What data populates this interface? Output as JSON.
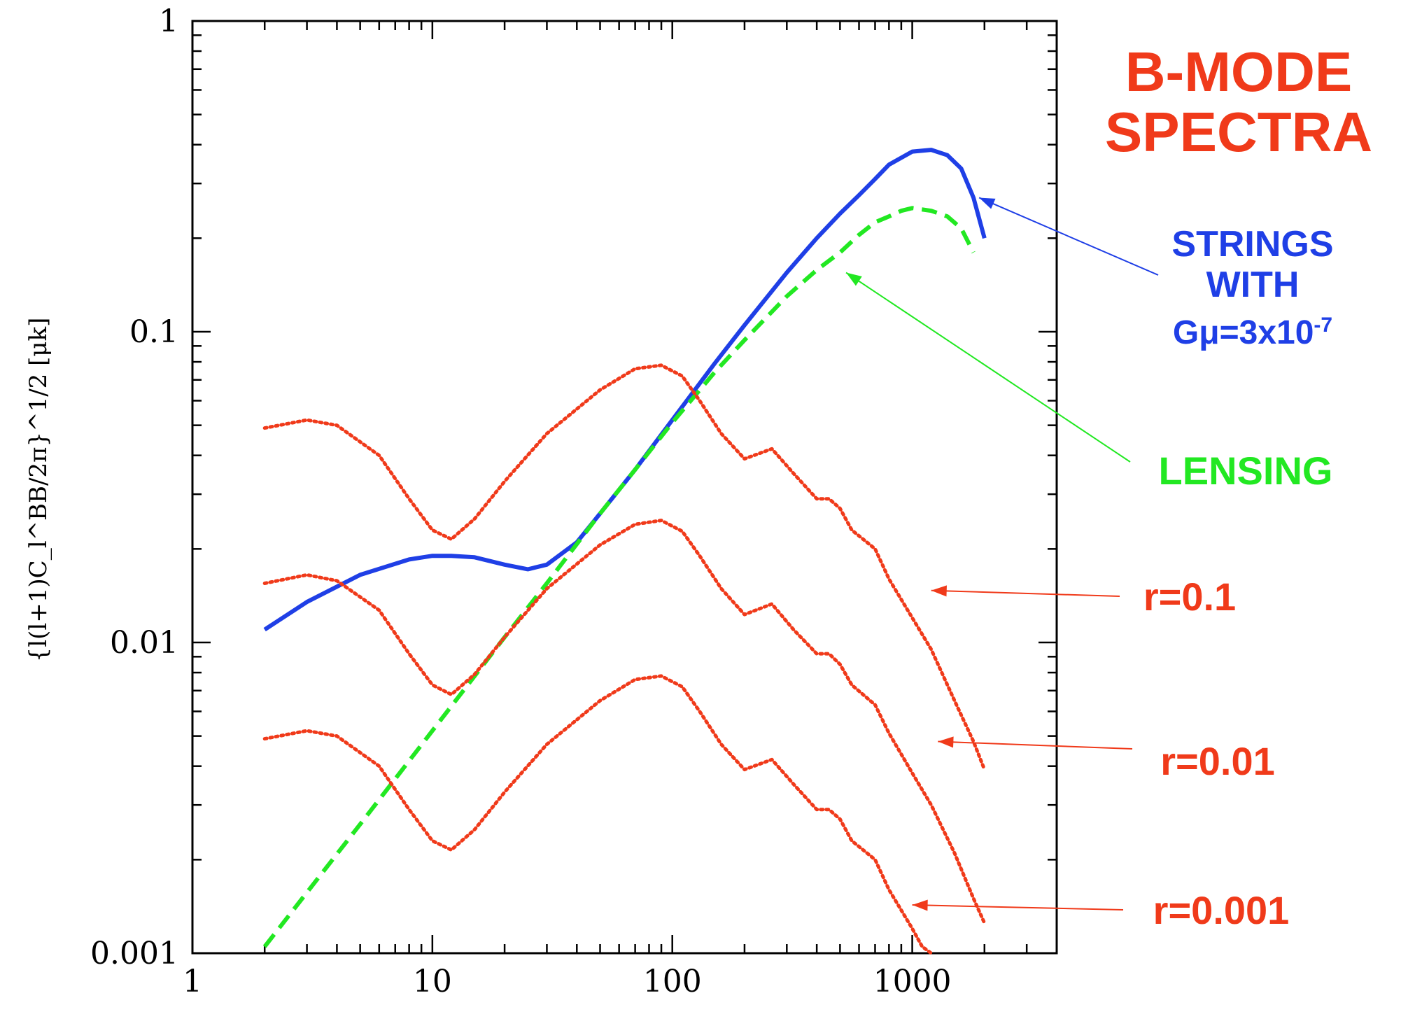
{
  "chart_data": {
    "type": "line",
    "title": "B-MODE\nSPECTRA",
    "xlabel": "",
    "ylabel": "{l(l+1)C_l^BB/2π}^1/2 [μk]",
    "x_scale": "log",
    "y_scale": "log",
    "xlim": [
      1,
      4000
    ],
    "ylim": [
      0.001,
      1
    ],
    "x_ticks": [
      "1",
      "10",
      "100",
      "1000"
    ],
    "y_ticks": [
      "0.001",
      "0.01",
      "0.1",
      "1"
    ],
    "colors": {
      "strings": "#1f3fe6",
      "lensing": "#22e822",
      "tensor": "#f03a1a"
    },
    "series": [
      {
        "name": "STRINGS WITH Gμ=3x10-7",
        "style": "solid",
        "x": [
          2,
          3,
          5,
          8,
          10,
          12,
          15,
          20,
          25,
          30,
          40,
          50,
          70,
          100,
          150,
          200,
          300,
          400,
          500,
          600,
          700,
          800,
          1000,
          1200,
          1400,
          1600,
          1800,
          2000
        ],
        "y": [
          0.011,
          0.0135,
          0.0165,
          0.0185,
          0.019,
          0.019,
          0.0188,
          0.0178,
          0.0172,
          0.0178,
          0.021,
          0.026,
          0.036,
          0.052,
          0.079,
          0.105,
          0.155,
          0.2,
          0.24,
          0.275,
          0.31,
          0.345,
          0.38,
          0.385,
          0.37,
          0.335,
          0.27,
          0.2
        ]
      },
      {
        "name": "LENSING",
        "style": "dashed",
        "x": [
          2,
          5,
          10,
          20,
          30,
          50,
          70,
          100,
          150,
          200,
          300,
          400,
          500,
          600,
          700,
          800,
          900,
          1000,
          1200,
          1400,
          1600,
          1800
        ],
        "y": [
          0.00105,
          0.0026,
          0.0052,
          0.0104,
          0.0155,
          0.026,
          0.036,
          0.051,
          0.074,
          0.094,
          0.13,
          0.158,
          0.18,
          0.205,
          0.225,
          0.235,
          0.245,
          0.25,
          0.245,
          0.235,
          0.215,
          0.18
        ]
      },
      {
        "name": "r=0.1",
        "style": "dotted",
        "x": [
          2,
          3,
          4,
          6,
          8,
          10,
          12,
          15,
          20,
          30,
          50,
          70,
          90,
          110,
          130,
          160,
          200,
          260,
          320,
          400,
          450,
          500,
          560,
          700,
          800,
          1000,
          1200,
          1500,
          1800,
          2000
        ],
        "y": [
          0.049,
          0.052,
          0.05,
          0.04,
          0.029,
          0.023,
          0.0215,
          0.025,
          0.033,
          0.047,
          0.065,
          0.076,
          0.078,
          0.072,
          0.06,
          0.047,
          0.039,
          0.042,
          0.035,
          0.029,
          0.029,
          0.027,
          0.023,
          0.02,
          0.016,
          0.012,
          0.0095,
          0.0065,
          0.0048,
          0.0039
        ]
      },
      {
        "name": "r=0.01",
        "style": "dotted",
        "x": [
          2,
          3,
          4,
          6,
          8,
          10,
          12,
          15,
          20,
          30,
          50,
          70,
          90,
          110,
          130,
          160,
          200,
          260,
          320,
          400,
          450,
          500,
          560,
          700,
          800,
          1000,
          1200,
          1500,
          1800,
          2000
        ],
        "y": [
          0.0155,
          0.0165,
          0.0158,
          0.0127,
          0.0092,
          0.0073,
          0.0068,
          0.0079,
          0.0104,
          0.0149,
          0.0206,
          0.024,
          0.0247,
          0.0228,
          0.019,
          0.0149,
          0.0123,
          0.0133,
          0.011,
          0.0092,
          0.0092,
          0.0085,
          0.0073,
          0.0063,
          0.0051,
          0.0038,
          0.003,
          0.0021,
          0.0015,
          0.00125
        ]
      },
      {
        "name": "r=0.001",
        "style": "dotted",
        "x": [
          2,
          3,
          4,
          6,
          8,
          10,
          12,
          15,
          20,
          30,
          50,
          70,
          90,
          110,
          130,
          160,
          200,
          260,
          320,
          400,
          450,
          500,
          560,
          700,
          800,
          1000,
          1100,
          1200
        ],
        "y": [
          0.0049,
          0.0052,
          0.005,
          0.004,
          0.0029,
          0.0023,
          0.00215,
          0.0025,
          0.0033,
          0.0047,
          0.0065,
          0.0076,
          0.0078,
          0.0072,
          0.006,
          0.0047,
          0.0039,
          0.0042,
          0.0035,
          0.0029,
          0.0029,
          0.0027,
          0.0023,
          0.002,
          0.0016,
          0.0012,
          0.00105,
          0.001
        ]
      }
    ],
    "annotations": [
      {
        "id": "strings",
        "lines": [
          "STRINGS",
          "WITH",
          "Gμ=3x10"
        ],
        "superscript": "-7",
        "color": "#1f3fe6",
        "target_x": 1900,
        "target_y": 0.27
      },
      {
        "id": "lensing",
        "lines": [
          "LENSING"
        ],
        "color": "#22e822",
        "target_x": 530,
        "target_y": 0.155
      },
      {
        "id": "r01",
        "lines": [
          "r=0.1"
        ],
        "color": "#f03a1a",
        "target_x": 1200,
        "target_y": 0.0147
      },
      {
        "id": "r001",
        "lines": [
          "r=0.01"
        ],
        "color": "#f03a1a",
        "target_x": 1280,
        "target_y": 0.0048
      },
      {
        "id": "r0001",
        "lines": [
          "r=0.001"
        ],
        "color": "#f03a1a",
        "target_x": 1000,
        "target_y": 0.00143
      }
    ]
  }
}
